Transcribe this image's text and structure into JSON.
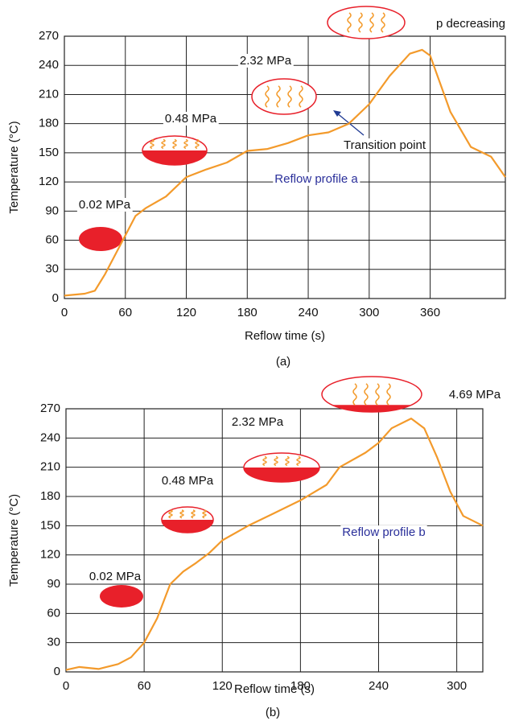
{
  "chart_data": [
    {
      "type": "line",
      "caption": "(a)",
      "x_label": "Reflow time (s)",
      "y_label": "Temperature (°C)",
      "x": [
        0,
        20,
        30,
        40,
        50,
        60,
        70,
        80,
        100,
        120,
        140,
        160,
        180,
        200,
        220,
        240,
        260,
        280,
        300,
        320,
        340,
        352,
        360,
        380,
        400,
        420,
        434
      ],
      "series": [
        {
          "name": "Reflow profile a",
          "color": "#f39a2b",
          "values": [
            3,
            5,
            8,
            25,
            45,
            65,
            85,
            93,
            105,
            125,
            133,
            140,
            152,
            154,
            160,
            168,
            171,
            180,
            200,
            229,
            252,
            256,
            250,
            192,
            156,
            146,
            125
          ]
        }
      ],
      "xlim": [
        0,
        434
      ],
      "xticks": [
        0,
        60,
        120,
        180,
        240,
        300,
        360
      ],
      "ylim": [
        0,
        270
      ],
      "yticks": [
        0,
        30,
        60,
        90,
        120,
        150,
        180,
        210,
        240,
        270
      ],
      "grid": true,
      "annotations": [
        "0.02 MPa",
        "0.48 MPa",
        "2.32 MPa",
        "p decreasing",
        "Transition point"
      ]
    },
    {
      "type": "line",
      "caption": "(b)",
      "x_label": "Reflow time (s)",
      "y_label": "Temperature (°C)",
      "x": [
        0,
        10,
        25,
        40,
        50,
        60,
        70,
        80,
        90,
        100,
        110,
        120,
        140,
        160,
        180,
        200,
        210,
        230,
        240,
        250,
        265,
        275,
        285,
        295,
        305,
        320
      ],
      "series": [
        {
          "name": "Reflow profile b",
          "color": "#f39a2b",
          "values": [
            2,
            5,
            3,
            8,
            15,
            30,
            55,
            90,
            103,
            112,
            122,
            135,
            150,
            163,
            176,
            192,
            210,
            225,
            235,
            250,
            260,
            250,
            220,
            185,
            160,
            150
          ]
        }
      ],
      "xlim": [
        0,
        320
      ],
      "xticks": [
        0,
        60,
        120,
        180,
        240,
        300
      ],
      "ylim": [
        0,
        270
      ],
      "yticks": [
        0,
        30,
        60,
        90,
        120,
        150,
        180,
        210,
        240,
        270
      ],
      "grid": true,
      "annotations": [
        "0.02 MPa",
        "0.48 MPa",
        "2.32 MPa",
        "4.69 MPa"
      ]
    }
  ]
}
